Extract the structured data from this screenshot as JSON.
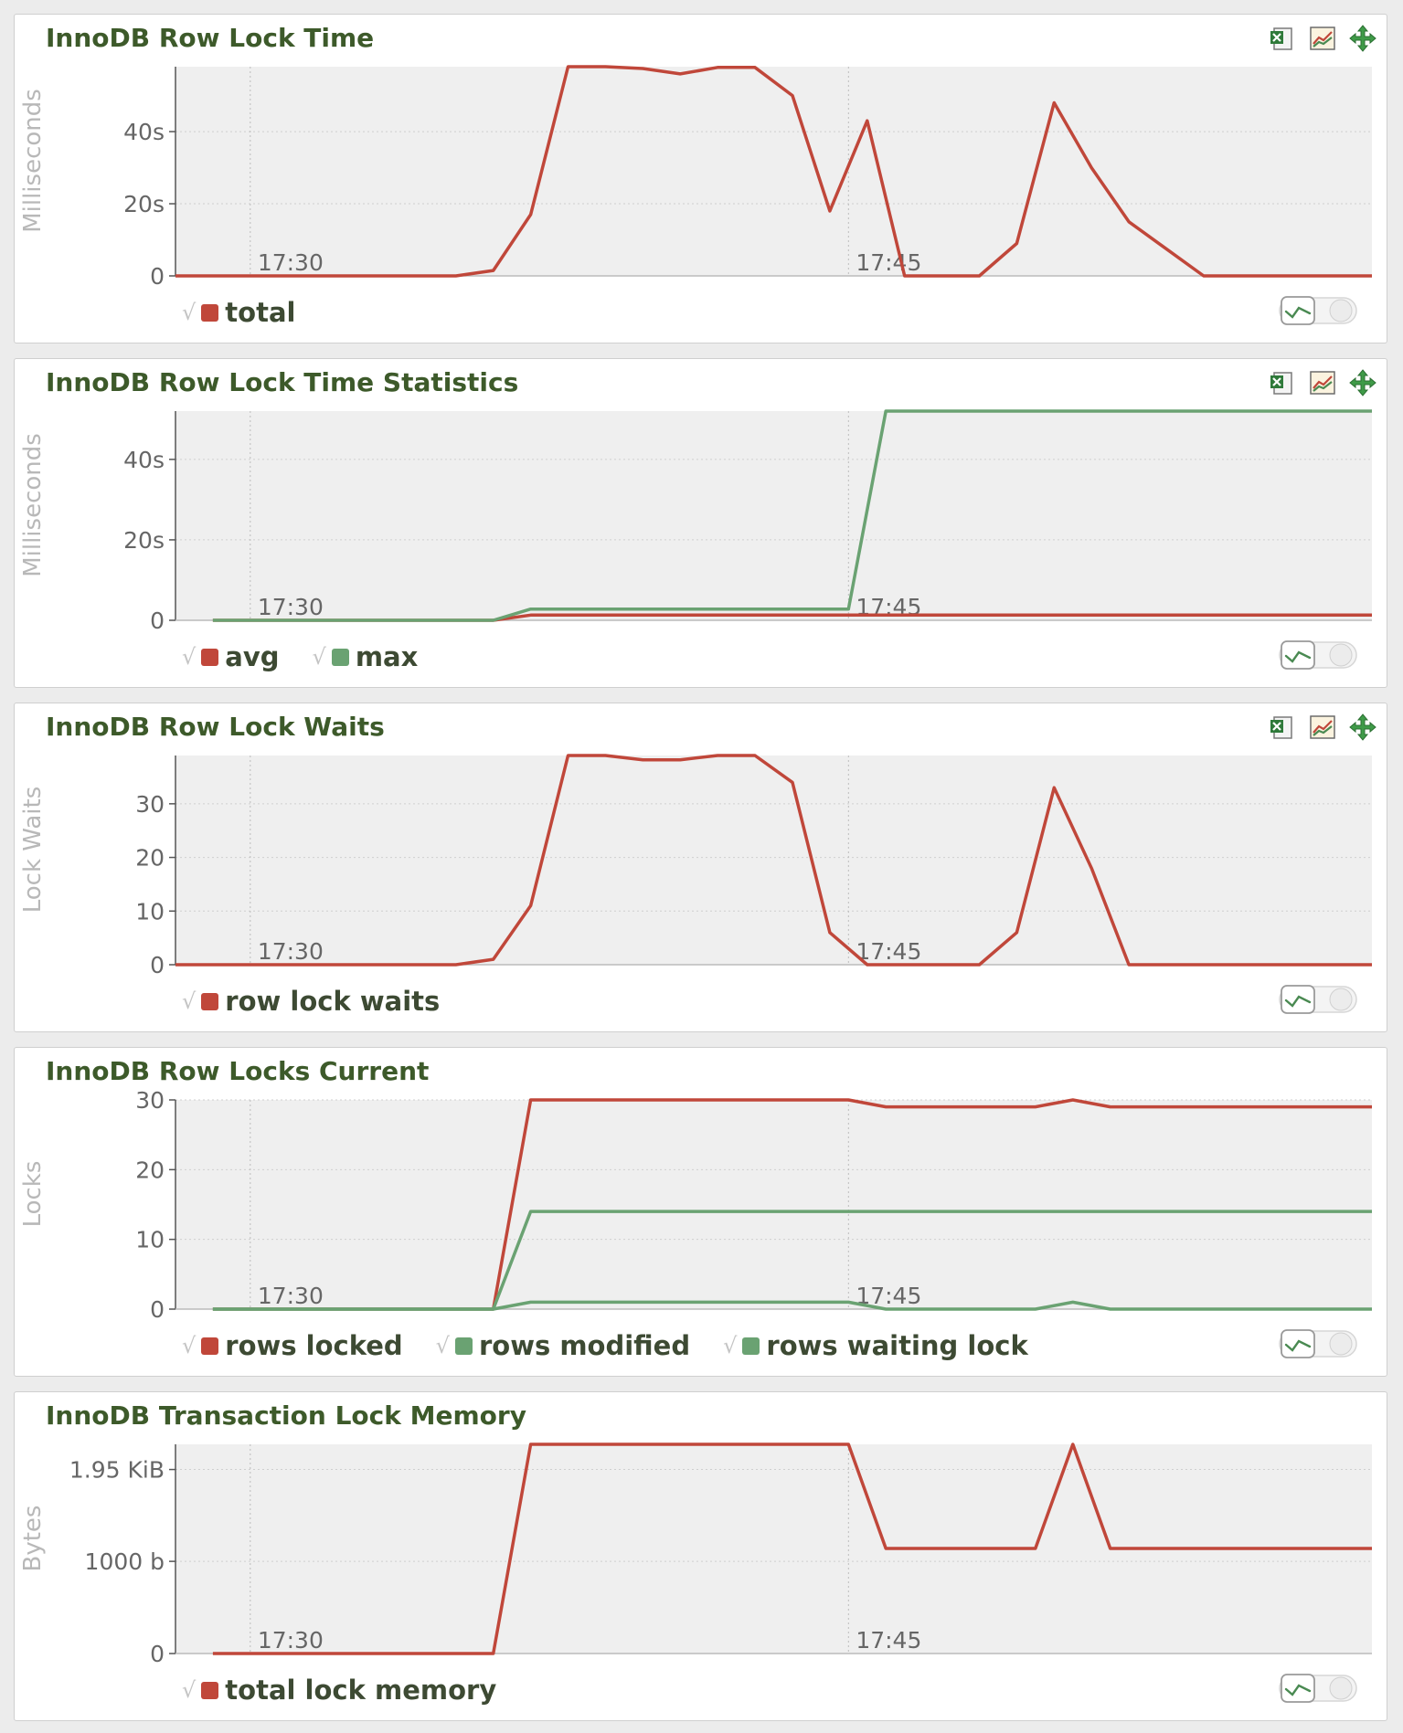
{
  "colors": {
    "red": "#c0473a",
    "green": "#6aa272",
    "plot_bg": "#efefef",
    "grid": "#cfcfcf"
  },
  "toolbar_icons": [
    "excel-export-icon",
    "chart-type-icon",
    "move-icon"
  ],
  "chart_data": [
    {
      "type": "line",
      "title": "InnoDB Row Lock Time",
      "ylabel": "Milliseconds",
      "xlabel": "",
      "x_ticks": [
        "17:30",
        "17:45"
      ],
      "y_ticks": [
        "0",
        "20s",
        "40s"
      ],
      "y_tick_values": [
        0,
        20,
        40
      ],
      "ylim": [
        0,
        58
      ],
      "xlim": [
        0,
        32
      ],
      "tick_x": [
        2,
        18
      ],
      "toolbar": true,
      "series": [
        {
          "name": "total",
          "color": "#c0473a",
          "x": [
            0,
            7.5,
            8.5,
            9.5,
            10.5,
            11.5,
            12.5,
            13.5,
            14.5,
            15.5,
            16.5,
            17.5,
            18.5,
            19.5,
            21.5,
            22.5,
            23.5,
            24.5,
            25.5,
            27.5,
            32
          ],
          "values": [
            0,
            0,
            1.5,
            17,
            58,
            58,
            57.5,
            56,
            57.8,
            57.8,
            50,
            18,
            43,
            0,
            0,
            9,
            48,
            30,
            15,
            0,
            0
          ]
        }
      ]
    },
    {
      "type": "line",
      "title": "InnoDB Row Lock Time Statistics",
      "ylabel": "Milliseconds",
      "xlabel": "",
      "x_ticks": [
        "17:30",
        "17:45"
      ],
      "y_ticks": [
        "0",
        "20s",
        "40s"
      ],
      "y_tick_values": [
        0,
        20,
        40
      ],
      "ylim": [
        0,
        52
      ],
      "xlim": [
        0,
        32
      ],
      "tick_x": [
        2,
        18
      ],
      "toolbar": true,
      "series": [
        {
          "name": "avg",
          "color": "#c0473a",
          "x": [
            1,
            8.5,
            9.5,
            32
          ],
          "values": [
            0,
            0,
            1.3,
            1.3
          ]
        },
        {
          "name": "max",
          "color": "#6aa272",
          "x": [
            1,
            8.5,
            9.5,
            18,
            19,
            32
          ],
          "values": [
            0,
            0,
            2.8,
            2.8,
            52,
            52
          ]
        }
      ]
    },
    {
      "type": "line",
      "title": "InnoDB Row Lock Waits",
      "ylabel": "Lock Waits",
      "xlabel": "",
      "x_ticks": [
        "17:30",
        "17:45"
      ],
      "y_ticks": [
        "0",
        "10",
        "20",
        "30"
      ],
      "y_tick_values": [
        0,
        10,
        20,
        30
      ],
      "ylim": [
        0,
        39
      ],
      "xlim": [
        0,
        32
      ],
      "tick_x": [
        2,
        18
      ],
      "toolbar": true,
      "series": [
        {
          "name": "row lock waits",
          "color": "#c0473a",
          "x": [
            0,
            7.5,
            8.5,
            9.5,
            10.5,
            11.5,
            12.5,
            13.5,
            14.5,
            15.5,
            16.5,
            17.5,
            18.5,
            19.5,
            21.5,
            22.5,
            23.5,
            24.5,
            25.5,
            32
          ],
          "values": [
            0,
            0,
            1,
            11,
            39,
            39,
            38.2,
            38.2,
            39,
            39,
            34,
            6,
            0,
            0,
            0,
            6,
            33,
            18,
            0,
            0
          ]
        }
      ]
    },
    {
      "type": "line",
      "title": "InnoDB Row Locks Current",
      "ylabel": "Locks",
      "xlabel": "",
      "x_ticks": [
        "17:30",
        "17:45"
      ],
      "y_ticks": [
        "0",
        "10",
        "20",
        "30"
      ],
      "y_tick_values": [
        0,
        10,
        20,
        30
      ],
      "ylim": [
        0,
        30
      ],
      "xlim": [
        0,
        32
      ],
      "tick_x": [
        2,
        18
      ],
      "toolbar": false,
      "series": [
        {
          "name": "rows locked",
          "color": "#c0473a",
          "x": [
            1,
            8.5,
            9.5,
            18,
            19,
            23,
            24,
            25,
            32
          ],
          "values": [
            0,
            0,
            30,
            30,
            29,
            29,
            30,
            29,
            29
          ]
        },
        {
          "name": "rows modified",
          "color": "#6aa272",
          "x": [
            1,
            8.5,
            9.5,
            32
          ],
          "values": [
            0,
            0,
            14,
            14
          ]
        },
        {
          "name": "rows waiting lock",
          "color": "#6aa272",
          "x": [
            1,
            8.5,
            9.5,
            18,
            19,
            23,
            24,
            25,
            32
          ],
          "values": [
            0,
            0,
            1,
            1,
            0,
            0,
            1,
            0,
            0
          ]
        }
      ]
    },
    {
      "type": "line",
      "title": "InnoDB Transaction Lock Memory",
      "ylabel": "Bytes",
      "xlabel": "",
      "x_ticks": [
        "17:30",
        "17:45"
      ],
      "y_ticks": [
        "0",
        "1000 b",
        "1.95 KiB"
      ],
      "y_tick_values": [
        0,
        1000,
        1996.8
      ],
      "ylim": [
        0,
        2270
      ],
      "xlim": [
        0,
        32
      ],
      "tick_x": [
        2,
        18
      ],
      "toolbar": false,
      "series": [
        {
          "name": "total lock memory",
          "color": "#c0473a",
          "x": [
            1,
            8.5,
            9.5,
            18,
            19,
            23,
            24,
            25,
            32
          ],
          "values": [
            0,
            0,
            2270,
            2270,
            1140,
            1140,
            2270,
            1140,
            1140
          ]
        }
      ]
    }
  ]
}
